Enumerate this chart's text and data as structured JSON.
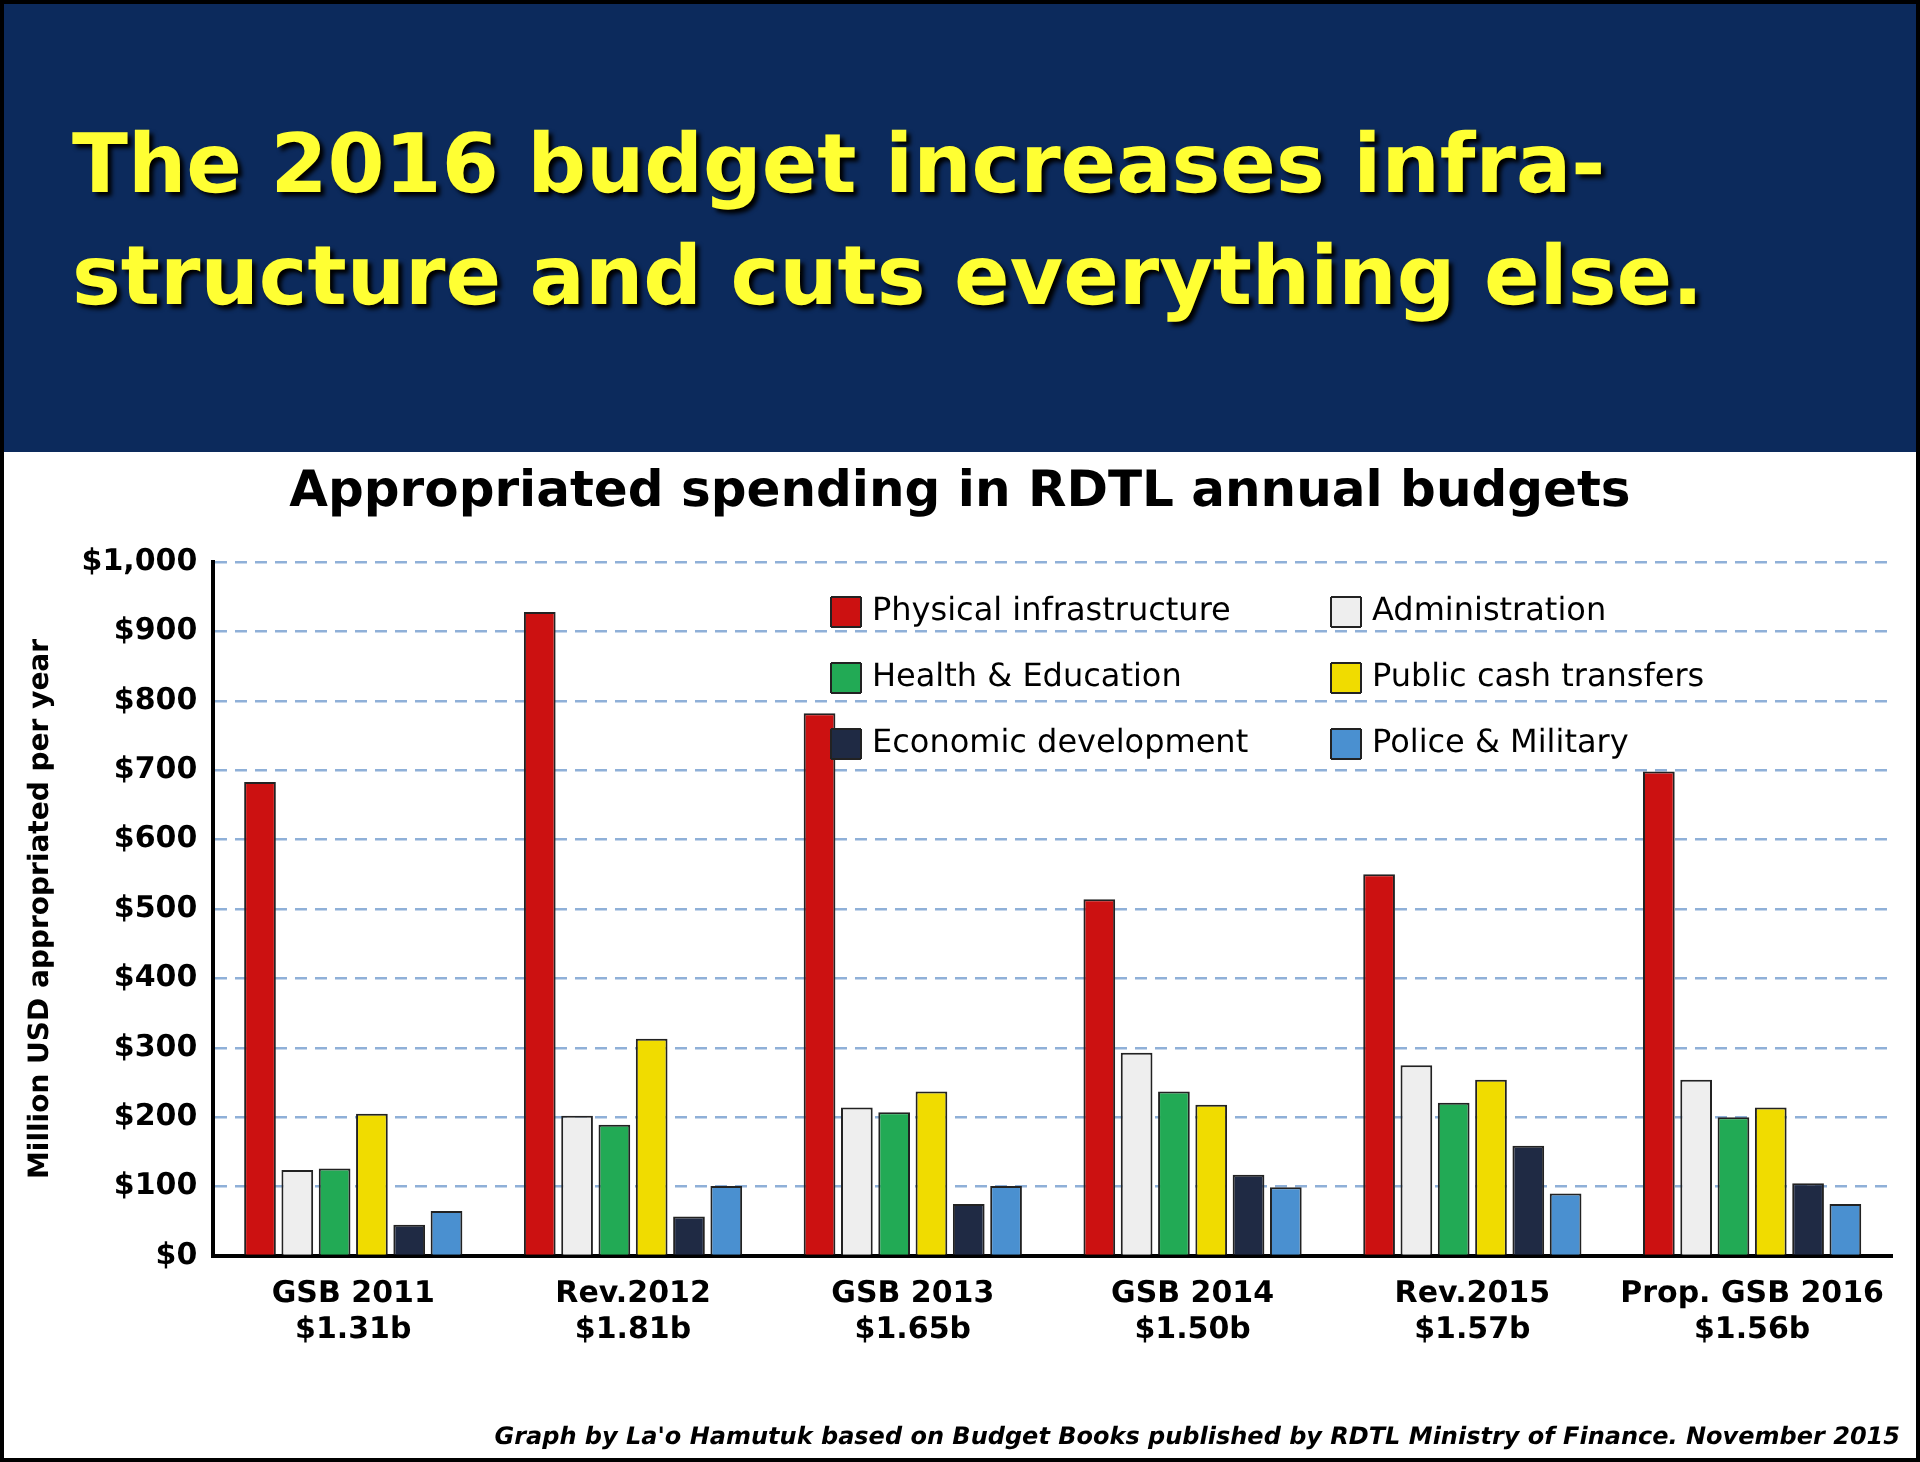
{
  "chart_data": {
    "type": "bar",
    "title": "The 2016 budget increases infra-structure and cuts everything else.",
    "subtitle": "Appropriated spending in RDTL annual budgets",
    "ylabel": "Million USD appropriated per year",
    "categories": [
      "GSB 2011\n$1.31b",
      "Rev.2012\n$1.81b",
      "GSB 2013\n$1.65b",
      "GSB 2014\n$1.50b",
      "Rev.2015\n$1.57b",
      "Prop. GSB 2016\n$1.56b"
    ],
    "series": [
      {
        "name": "Physical infrastructure",
        "color": "#cc1111",
        "values": [
          683,
          928,
          782,
          514,
          550,
          698
        ]
      },
      {
        "name": "Administration",
        "color": "#eeeeee",
        "values": [
          124,
          202,
          214,
          293,
          275,
          254
        ]
      },
      {
        "name": "Health & Education",
        "color": "#22aa55",
        "values": [
          126,
          189,
          207,
          237,
          221,
          200
        ]
      },
      {
        "name": "Public cash transfers",
        "color": "#f0dc00",
        "values": [
          205,
          313,
          237,
          218,
          254,
          214
        ]
      },
      {
        "name": "Economic development",
        "color": "#1f2a44",
        "values": [
          45,
          57,
          75,
          117,
          159,
          105
        ]
      },
      {
        "name": "Police & Military",
        "color": "#4a90d0",
        "values": [
          65,
          101,
          101,
          99,
          90,
          75
        ]
      }
    ],
    "ylim": [
      0,
      1000
    ],
    "yticks": [
      {
        "value": 0,
        "label": "$0"
      },
      {
        "value": 100,
        "label": "$100"
      },
      {
        "value": 200,
        "label": "$200"
      },
      {
        "value": 300,
        "label": "$300"
      },
      {
        "value": 400,
        "label": "$400"
      },
      {
        "value": 500,
        "label": "$500"
      },
      {
        "value": 600,
        "label": "$600"
      },
      {
        "value": 700,
        "label": "$700"
      },
      {
        "value": 800,
        "label": "$800"
      },
      {
        "value": 900,
        "label": "$900"
      },
      {
        "value": 1000,
        "label": "$1,000"
      }
    ],
    "grid": "y",
    "legend": "top right",
    "annotations": [
      "Graph by La'o Hamutuk based on Budget Books published by RDTL Ministry of Finance.  November 2015"
    ]
  }
}
